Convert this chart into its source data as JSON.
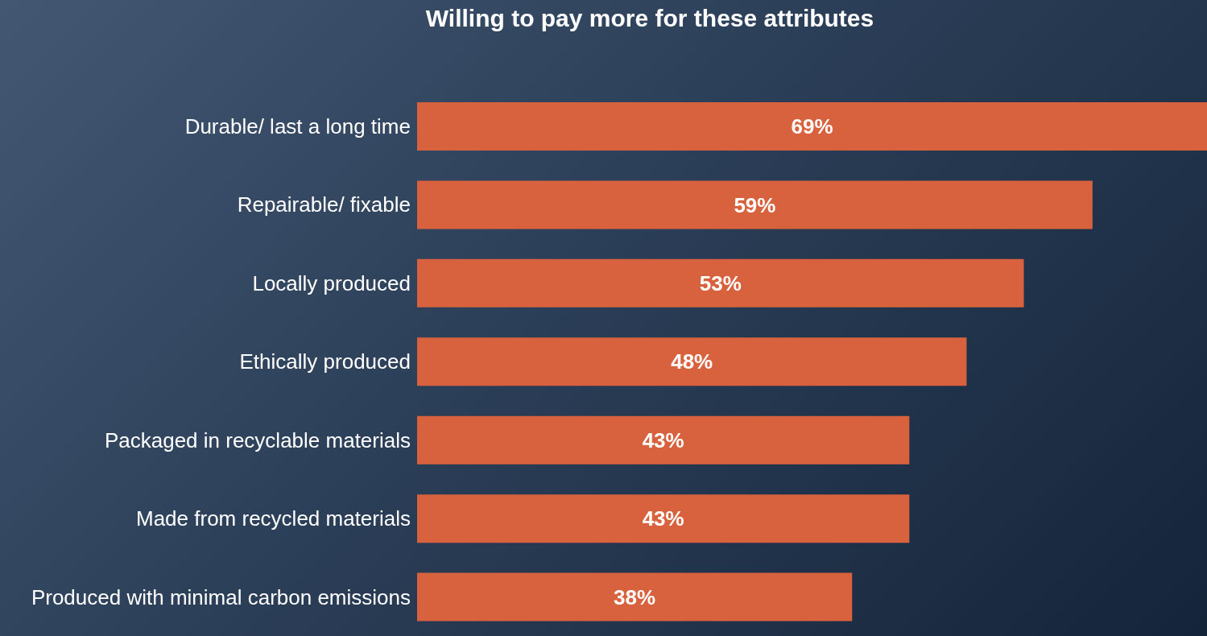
{
  "chart_data": {
    "type": "bar",
    "orientation": "horizontal",
    "title": "Willing to pay more for these attributes",
    "categories": [
      "Durable/ last a long time",
      "Repairable/ fixable",
      "Locally produced",
      "Ethically produced",
      "Packaged in recyclable materials",
      "Made from recycled materials",
      "Produced with minimal carbon emissions"
    ],
    "values": [
      69,
      59,
      53,
      48,
      43,
      43,
      38
    ],
    "value_labels": [
      "69%",
      "59%",
      "53%",
      "48%",
      "43%",
      "43%",
      "38%"
    ],
    "color": "#d9623e"
  }
}
